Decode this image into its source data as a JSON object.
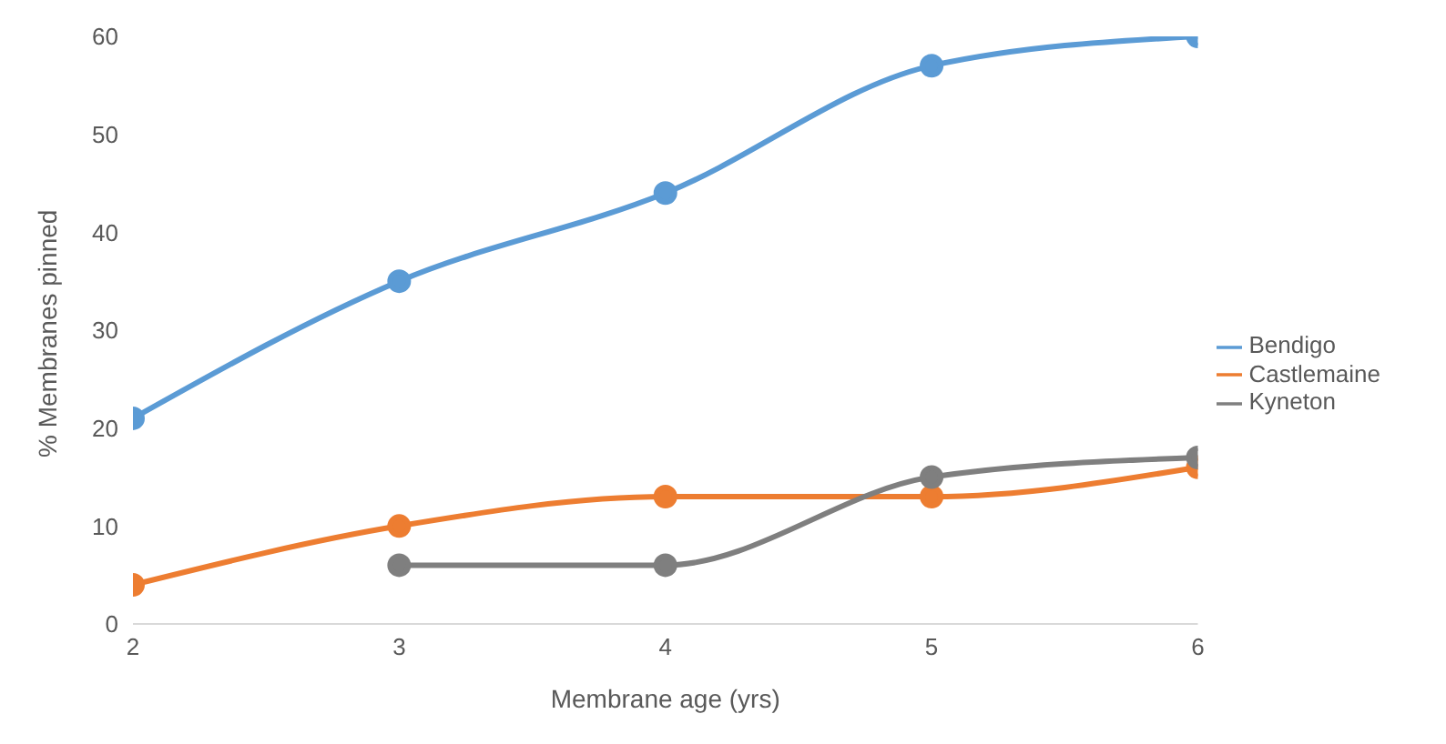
{
  "chart_data": {
    "type": "line",
    "xlabel": "Membrane age (yrs)",
    "ylabel": "% Membranes pinned",
    "x": [
      2,
      3,
      4,
      5,
      6
    ],
    "series": [
      {
        "name": "Bendigo",
        "color": "#5b9bd5",
        "values": [
          21,
          35,
          44,
          57,
          60
        ]
      },
      {
        "name": "Castlemaine",
        "color": "#ed7d31",
        "values": [
          4,
          10,
          13,
          13,
          16
        ]
      },
      {
        "name": "Kyneton",
        "color": "#7f7f7f",
        "x": [
          3,
          4,
          5,
          6
        ],
        "values": [
          6,
          6,
          15,
          17
        ]
      }
    ],
    "xlim": [
      2,
      6
    ],
    "xticks": [
      2,
      3,
      4,
      5,
      6
    ],
    "ylim": [
      0,
      60
    ],
    "yticks": [
      0,
      10,
      20,
      30,
      40,
      50,
      60
    ],
    "grid": false,
    "legend": "right",
    "marker": "circle",
    "line_style": "solid"
  }
}
